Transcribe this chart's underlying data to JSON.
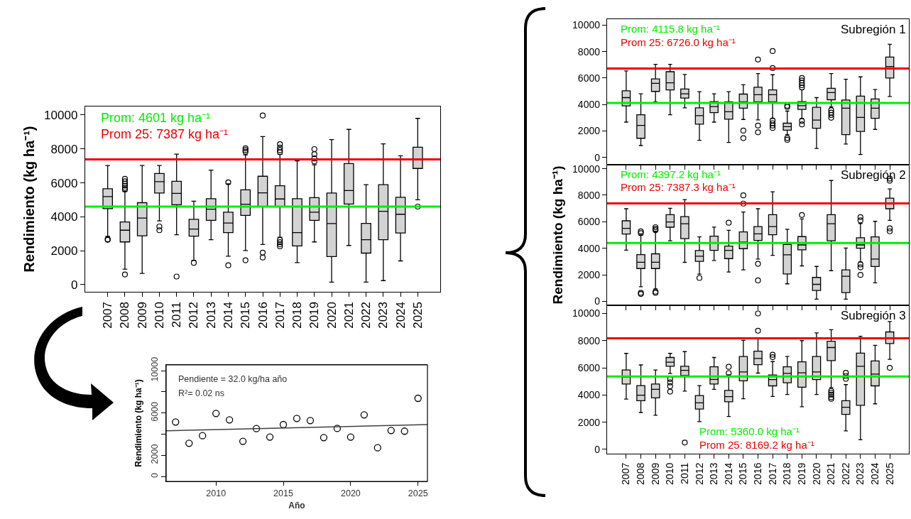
{
  "chart_data": [
    {
      "type": "box",
      "ylabel": "Rendimiento (kg ha⁻¹)",
      "categories": [
        "2007",
        "2008",
        "2009",
        "2010",
        "2011",
        "2012",
        "2013",
        "2014",
        "2015",
        "2016",
        "2017",
        "2018",
        "2019",
        "2020",
        "2021",
        "2022",
        "2023",
        "2024",
        "2025"
      ],
      "color": "#d3d3d3",
      "ylim": [
        -420,
        10500
      ],
      "yticks": [
        0,
        2000,
        4000,
        6000,
        8000,
        10000
      ],
      "boxes": [
        {
          "low": 2850,
          "q1": 4480,
          "median": 5190,
          "q3": 5650,
          "high": 7020,
          "outliers": [
            2680,
            2640
          ]
        },
        {
          "low": 910,
          "q1": 2520,
          "median": 3210,
          "q3": 3700,
          "high": 5500,
          "outliers": [
            6240,
            6090,
            5950,
            5830,
            5710,
            5610,
            600
          ]
        },
        {
          "low": 660,
          "q1": 2880,
          "median": 3930,
          "q3": 4830,
          "high": 7020
        },
        {
          "low": 3760,
          "q1": 5400,
          "median": 6070,
          "q3": 6550,
          "high": 7020,
          "outliers": [
            3430,
            3210
          ]
        },
        {
          "low": 2940,
          "q1": 4710,
          "median": 5380,
          "q3": 6090,
          "high": 7690,
          "outliers": [
            480
          ]
        },
        {
          "low": 1440,
          "q1": 2860,
          "median": 3280,
          "q3": 3850,
          "high": 4920,
          "outliers": [
            1290
          ]
        },
        {
          "low": 2650,
          "q1": 3790,
          "median": 4450,
          "q3": 5070,
          "high": 6750
        },
        {
          "low": 1680,
          "q1": 3070,
          "median": 3630,
          "q3": 4270,
          "high": 5940,
          "outliers": [
            6030,
            1140
          ]
        },
        {
          "low": 2010,
          "q1": 4080,
          "median": 4740,
          "q3": 5590,
          "high": 7650,
          "outliers": [
            8040,
            7930,
            7830,
            1440
          ]
        },
        {
          "low": 2370,
          "q1": 4590,
          "median": 5410,
          "q3": 6390,
          "high": 8730,
          "outliers": [
            9970,
            1890,
            1600
          ]
        },
        {
          "low": 2800,
          "q1": 4620,
          "median": 5050,
          "q3": 5830,
          "high": 7680,
          "outliers": [
            8280,
            8080,
            7930,
            7810,
            2640,
            2500,
            2380,
            2260
          ]
        },
        {
          "low": 1300,
          "q1": 2280,
          "median": 3070,
          "q3": 5070,
          "high": 7300
        },
        {
          "low": 2520,
          "q1": 3790,
          "median": 4270,
          "q3": 5130,
          "high": 7060,
          "outliers": [
            7990,
            7690,
            7440,
            7260
          ]
        },
        {
          "low": 150,
          "q1": 1660,
          "median": 3600,
          "q3": 5400,
          "high": 8550
        },
        {
          "low": 2310,
          "q1": 4750,
          "median": 5550,
          "q3": 7140,
          "high": 9150
        },
        {
          "low": 150,
          "q1": 1860,
          "median": 2650,
          "q3": 3610,
          "high": 5890
        },
        {
          "low": 240,
          "q1": 2650,
          "median": 4320,
          "q3": 5890,
          "high": 8300
        },
        {
          "low": 1400,
          "q1": 3050,
          "median": 4150,
          "q3": 5150,
          "high": 7600
        },
        {
          "low": 5000,
          "q1": 6850,
          "median": 7400,
          "q3": 8100,
          "high": 9800,
          "outliers": [
            4600
          ]
        }
      ],
      "ref_lines": [
        {
          "axis": "y",
          "value": 4601,
          "label": "Prom: 4601 kg ha⁻¹",
          "color": "#00ee00"
        },
        {
          "axis": "y",
          "value": 7387,
          "label": "Prom 25: 7387 kg ha⁻¹",
          "color": "#ee0000"
        }
      ]
    },
    {
      "type": "scatter",
      "xlabel": "Año",
      "ylabel": "Rendimiento (kg ha⁻¹)",
      "x": [
        2007,
        2008,
        2009,
        2010,
        2011,
        2012,
        2013,
        2014,
        2015,
        2016,
        2017,
        2018,
        2019,
        2020,
        2021,
        2022,
        2023,
        2024,
        2025
      ],
      "xlim": [
        2006.3,
        2025.7
      ],
      "xticks": [
        2010,
        2015,
        2020,
        2025
      ],
      "ylim": [
        -450,
        10540
      ],
      "yticks": [
        0,
        2000,
        {
          "value": 4000,
          "label": null
        },
        6000,
        {
          "value": 8000,
          "label": null
        },
        10000
      ],
      "annotations": [
        "Pendiente = 32.0 kg/ha año",
        "R²= 0.02 ns"
      ],
      "series": [
        {
          "type": "scatter",
          "marker": "circle",
          "color": "#000000",
          "values": [
            5160,
            3150,
            3860,
            5960,
            5360,
            3330,
            4530,
            3730,
            4910,
            5490,
            5290,
            3680,
            4550,
            3730,
            5830,
            2720,
            4350,
            4290,
            7390
          ]
        },
        {
          "type": "line",
          "marker": "none",
          "color": "#404040",
          "x": [
            2006.3,
            2025.7
          ],
          "values": [
            4330,
            4910
          ]
        }
      ]
    },
    {
      "type": "box",
      "categories": [
        "2007",
        "2008",
        "2009",
        "2010",
        "2011",
        "2012",
        "2013",
        "2014",
        "2015",
        "2016",
        "2017",
        "2018",
        "2019",
        "2020",
        "2021",
        "2022",
        "2023",
        "2024",
        "2025"
      ],
      "color": "#d3d3d3",
      "ylim": [
        -550,
        10450
      ],
      "yticks": [
        0,
        2000,
        4000,
        6000,
        8000,
        10000
      ],
      "tick_labels": "y",
      "annotations": [
        "Subregión 1"
      ],
      "boxes": [
        {
          "low": 2670,
          "q1": 3900,
          "median": 4520,
          "q3": 5040,
          "high": 6540
        },
        {
          "low": 900,
          "q1": 1450,
          "median": 2420,
          "q3": 3230,
          "high": 4810
        },
        {
          "low": 4200,
          "q1": 4990,
          "median": 5600,
          "q3": 5940,
          "high": 7040
        },
        {
          "low": 3230,
          "q1": 5100,
          "median": 5640,
          "q3": 6480,
          "high": 7040
        },
        {
          "low": 3750,
          "q1": 4490,
          "median": 4810,
          "q3": 5170,
          "high": 6270
        },
        {
          "low": 1290,
          "q1": 2510,
          "median": 3160,
          "q3": 3750,
          "high": 4970
        },
        {
          "low": 2670,
          "q1": 3390,
          "median": 3840,
          "q3": 4220,
          "high": 4810
        },
        {
          "low": 1130,
          "q1": 2890,
          "median": 3450,
          "q3": 4200,
          "high": 4970
        },
        {
          "low": 2870,
          "q1": 3720,
          "median": 4200,
          "q3": 4790,
          "high": 5490,
          "outliers": [
            2030,
            1460
          ]
        },
        {
          "low": 2840,
          "q1": 4200,
          "median": 4740,
          "q3": 5310,
          "high": 6340,
          "outliers": [
            7400,
            2410,
            1900
          ]
        },
        {
          "low": 2940,
          "q1": 4200,
          "median": 4740,
          "q3": 5100,
          "high": 6250,
          "outliers": [
            8040,
            6750,
            2800,
            2590,
            2410,
            2230
          ]
        },
        {
          "low": 1720,
          "q1": 2060,
          "median": 2330,
          "q3": 2590,
          "high": 3500,
          "outliers": [
            3910,
            3810,
            1470,
            1330
          ]
        },
        {
          "low": 2940,
          "q1": 3630,
          "median": 3910,
          "q3": 4220,
          "high": 5120,
          "outliers": [
            6000,
            5820,
            5640,
            5460,
            5280,
            2760,
            2500
          ]
        },
        {
          "low": 680,
          "q1": 2210,
          "median": 2820,
          "q3": 3790,
          "high": 4520
        },
        {
          "low": 3810,
          "q1": 4360,
          "median": 4900,
          "q3": 5220,
          "high": 6340,
          "outliers": [
            3570,
            3390,
            3210,
            3000
          ]
        },
        {
          "low": 1010,
          "q1": 1720,
          "median": 3720,
          "q3": 4340,
          "high": 5910
        },
        {
          "low": 220,
          "q1": 1970,
          "median": 3030,
          "q3": 4630,
          "high": 6090
        },
        {
          "low": 2120,
          "q1": 2960,
          "median": 3720,
          "q3": 4420,
          "high": 5130
        },
        {
          "low": 4610,
          "q1": 6000,
          "median": 6880,
          "q3": 7590,
          "high": 8550
        }
      ],
      "ref_lines": [
        {
          "axis": "y",
          "value": 4115.8,
          "label": "Prom: 4115.8 kg ha⁻¹",
          "color": "#00ee00"
        },
        {
          "axis": "y",
          "value": 6726.0,
          "label": "Prom 25: 6726.0 kg ha⁻¹",
          "color": "#ee0000"
        }
      ]
    },
    {
      "type": "box",
      "ylabel": "Rendimiento (kg ha⁻¹)",
      "categories": [
        "2007",
        "2008",
        "2009",
        "2010",
        "2011",
        "2012",
        "2013",
        "2014",
        "2015",
        "2016",
        "2017",
        "2018",
        "2019",
        "2020",
        "2021",
        "2022",
        "2023",
        "2024",
        "2025"
      ],
      "color": "#d3d3d3",
      "ylim": [
        -300,
        10300
      ],
      "yticks": [
        0,
        2000,
        4000,
        6000,
        8000,
        10000
      ],
      "tick_labels": "y",
      "annotations": [
        "Subregión 2"
      ],
      "boxes": [
        {
          "low": 3860,
          "q1": 5070,
          "median": 5500,
          "q3": 6070,
          "high": 6980
        },
        {
          "low": 1100,
          "q1": 2470,
          "median": 2950,
          "q3": 3520,
          "high": 5000,
          "outliers": [
            5270,
            5140,
            640,
            550
          ]
        },
        {
          "low": 930,
          "q1": 2470,
          "median": 2950,
          "q3": 3580,
          "high": 5280,
          "outliers": [
            5590,
            5460,
            5360,
            730,
            640
          ]
        },
        {
          "low": 4570,
          "q1": 5590,
          "median": 5980,
          "q3": 6530,
          "high": 7010
        },
        {
          "low": 2940,
          "q1": 4730,
          "median": 5850,
          "q3": 6390,
          "high": 7670
        },
        {
          "low": 2050,
          "q1": 3010,
          "median": 3400,
          "q3": 3830,
          "high": 4860,
          "outliers": [
            1760
          ]
        },
        {
          "low": 3080,
          "q1": 3840,
          "median": 4430,
          "q3": 4910,
          "high": 5600
        },
        {
          "low": 2210,
          "q1": 3220,
          "median": 3840,
          "q3": 4160,
          "high": 5360,
          "outliers": [
            5930
          ]
        },
        {
          "low": 2370,
          "q1": 3970,
          "median": 4470,
          "q3": 5230,
          "high": 6730,
          "outliers": [
            7990,
            7370
          ]
        },
        {
          "low": 3190,
          "q1": 4590,
          "median": 5090,
          "q3": 5640,
          "high": 6980,
          "outliers": [
            2830,
            1580
          ]
        },
        {
          "low": 3470,
          "q1": 5020,
          "median": 5640,
          "q3": 6530,
          "high": 8260
        },
        {
          "low": 1320,
          "q1": 2060,
          "median": 3510,
          "q3": 4290,
          "high": 5440
        },
        {
          "low": 2670,
          "q1": 3880,
          "median": 4250,
          "q3": 4880,
          "high": 6210,
          "outliers": [
            6510
          ]
        },
        {
          "low": 160,
          "q1": 820,
          "median": 1280,
          "q3": 1800,
          "high": 2630
        },
        {
          "low": 2310,
          "q1": 4560,
          "median": 5850,
          "q3": 6530,
          "high": 9110
        },
        {
          "low": 160,
          "q1": 660,
          "median": 1890,
          "q3": 2370,
          "high": 4020
        },
        {
          "low": 2970,
          "q1": 4000,
          "median": 4250,
          "q3": 4790,
          "high": 5870,
          "outliers": [
            6350,
            6100,
            2780,
            2560,
            1990
          ]
        },
        {
          "low": 1390,
          "q1": 2620,
          "median": 3190,
          "q3": 4860,
          "high": 6030
        },
        {
          "low": 6100,
          "q1": 6980,
          "median": 7380,
          "q3": 7780,
          "high": 8470,
          "outliers": [
            9250,
            9090,
            5500,
            5280
          ]
        }
      ],
      "ref_lines": [
        {
          "axis": "y",
          "value": 4397.2,
          "label": "Prom: 4397.2 kg ha⁻¹",
          "color": "#00ee00"
        },
        {
          "axis": "y",
          "value": 7387.3,
          "label": "Prom 25: 7387.3 kg ha⁻¹",
          "color": "#ee0000"
        }
      ]
    },
    {
      "type": "box",
      "categories": [
        "2007",
        "2008",
        "2009",
        "2010",
        "2011",
        "2012",
        "2013",
        "2014",
        "2015",
        "2016",
        "2017",
        "2018",
        "2019",
        "2020",
        "2021",
        "2022",
        "2023",
        "2024",
        "2025"
      ],
      "color": "#d3d3d3",
      "ylim": [
        -320,
        10600
      ],
      "yticks": [
        0,
        2000,
        4000,
        6000,
        8000,
        10000
      ],
      "annotations": [
        "Subregión 3"
      ],
      "boxes": [
        {
          "low": 3700,
          "q1": 4810,
          "median": 5310,
          "q3": 5840,
          "high": 7060
        },
        {
          "low": 2710,
          "q1": 3580,
          "median": 3980,
          "q3": 4690,
          "high": 6210
        },
        {
          "low": 2510,
          "q1": 3790,
          "median": 4420,
          "q3": 4810,
          "high": 5840
        },
        {
          "low": 5580,
          "q1": 6110,
          "median": 6410,
          "q3": 6760,
          "high": 7060,
          "outliers": [
            5170,
            4920,
            4650,
            4250
          ]
        },
        {
          "low": 4280,
          "q1": 5430,
          "median": 5810,
          "q3": 6110,
          "high": 7190,
          "outliers": [
            500
          ]
        },
        {
          "low": 2040,
          "q1": 2960,
          "median": 3420,
          "q3": 3960,
          "high": 4690
        },
        {
          "low": 4420,
          "q1": 4810,
          "median": 5150,
          "q3": 6070,
          "high": 6760
        },
        {
          "low": 2420,
          "q1": 3500,
          "median": 3880,
          "q3": 4340,
          "high": 5490,
          "outliers": [
            6070,
            5610
          ]
        },
        {
          "low": 3720,
          "q1": 5040,
          "median": 5700,
          "q3": 6830,
          "high": 8020
        },
        {
          "low": 5610,
          "q1": 6230,
          "median": 6690,
          "q3": 7220,
          "high": 8180,
          "outliers": [
            10000,
            8730
          ]
        },
        {
          "low": 3890,
          "q1": 4670,
          "median": 5130,
          "q3": 5470,
          "high": 6460,
          "outliers": [
            6960,
            6780
          ]
        },
        {
          "low": 4040,
          "q1": 4900,
          "median": 5590,
          "q3": 6070,
          "high": 6830
        },
        {
          "low": 3130,
          "q1": 4570,
          "median": 5630,
          "q3": 6440,
          "high": 8000
        },
        {
          "low": 4040,
          "q1": 5130,
          "median": 5700,
          "q3": 6830,
          "high": 8570
        },
        {
          "low": 4550,
          "q1": 6530,
          "median": 7490,
          "q3": 7950,
          "high": 8800,
          "outliers": [
            4300,
            4160,
            4020,
            3840,
            3720
          ]
        },
        {
          "low": 1360,
          "q1": 2570,
          "median": 3100,
          "q3": 3580,
          "high": 4760,
          "outliers": [
            5630,
            5400,
            5190
          ]
        },
        {
          "low": 710,
          "q1": 3240,
          "median": 6110,
          "q3": 7080,
          "high": 8320
        },
        {
          "low": 3350,
          "q1": 4670,
          "median": 5540,
          "q3": 6510,
          "high": 7650
        },
        {
          "low": 6620,
          "q1": 7790,
          "median": 8190,
          "q3": 8640,
          "high": 9400,
          "outliers": [
            6000
          ]
        }
      ],
      "ref_lines": [
        {
          "axis": "y",
          "value": 5360.0,
          "label": "Prom: 5360.0 kg ha⁻¹",
          "color": "#00ee00"
        },
        {
          "axis": "y",
          "value": 8169.2,
          "label": "Prom 25: 8169.2 kg ha⁻¹",
          "color": "#ee0000"
        }
      ]
    }
  ]
}
